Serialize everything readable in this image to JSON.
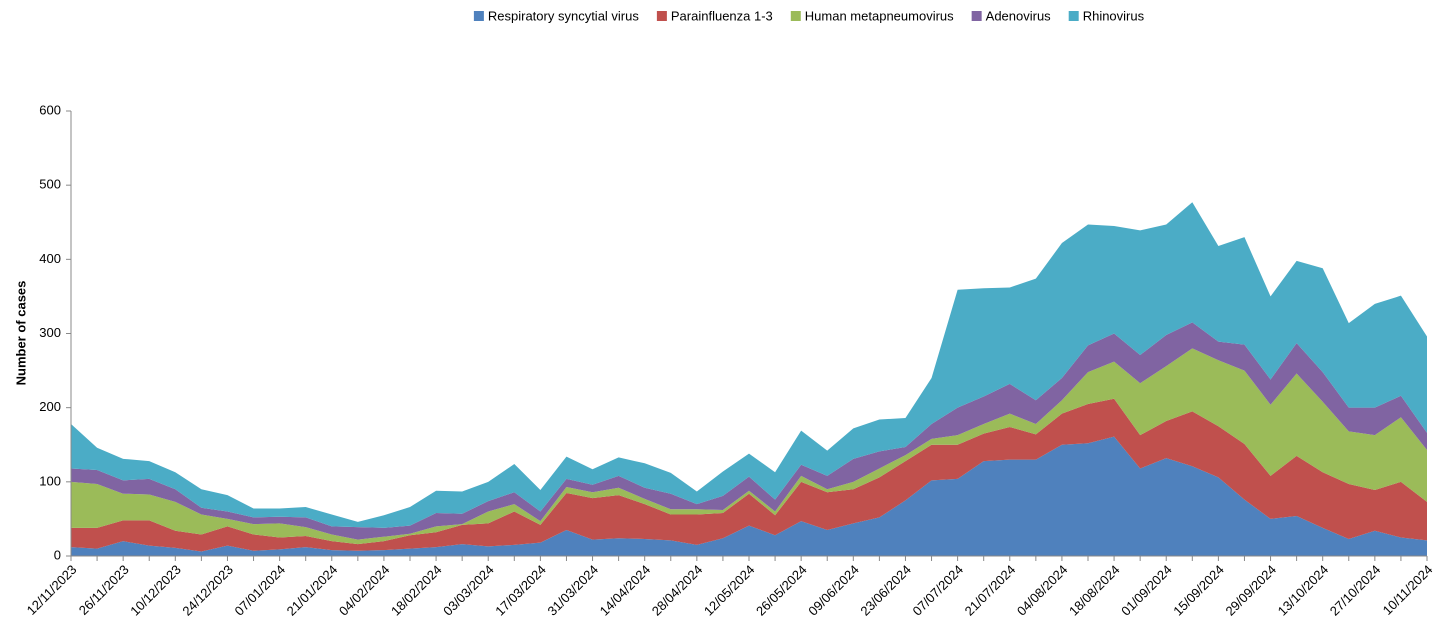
{
  "chart_data": {
    "type": "stacked-area",
    "y_label": "Number of cases",
    "ylim": [
      0,
      600
    ],
    "yticks": [
      0,
      100,
      200,
      300,
      400,
      500,
      600
    ],
    "grid": false,
    "legend": "top",
    "categories": [
      "12/11/2023",
      null,
      "26/11/2023",
      null,
      "10/12/2023",
      null,
      "24/12/2023",
      null,
      "07/01/2024",
      null,
      "21/01/2024",
      null,
      "04/02/2024",
      null,
      "18/02/2024",
      null,
      "03/03/2024",
      null,
      "17/03/2024",
      null,
      "31/03/2024",
      null,
      "14/04/2024",
      null,
      "28/04/2024",
      null,
      "12/05/2024",
      null,
      "26/05/2024",
      null,
      "09/06/2024",
      null,
      "23/06/2024",
      null,
      "07/07/2024",
      null,
      "21/07/2024",
      null,
      "04/08/2024",
      null,
      "18/08/2024",
      null,
      "01/09/2024",
      null,
      "15/09/2024",
      null,
      "29/09/2024",
      null,
      "13/10/2024",
      null,
      "27/10/2024",
      null,
      "10/11/2024"
    ],
    "series": [
      {
        "name": "Respiratory syncytial virus",
        "color": "#4f81bd",
        "values": [
          12,
          10,
          20,
          14,
          11,
          6,
          14,
          7,
          9,
          12,
          8,
          7,
          8,
          10,
          12,
          16,
          13,
          15,
          18,
          35,
          22,
          24,
          23,
          21,
          15,
          24,
          41,
          28,
          47,
          35,
          44,
          52,
          75,
          102,
          104,
          128,
          130,
          130,
          150,
          152,
          161,
          118,
          132,
          121,
          106,
          76,
          50,
          54,
          38,
          23,
          34,
          25,
          21
        ]
      },
      {
        "name": "Parainfluenza 1-3",
        "color": "#c0504d",
        "values": [
          26,
          28,
          28,
          34,
          23,
          23,
          26,
          22,
          16,
          15,
          12,
          9,
          12,
          18,
          20,
          26,
          31,
          45,
          24,
          50,
          56,
          58,
          47,
          35,
          41,
          34,
          43,
          27,
          53,
          51,
          46,
          54,
          53,
          48,
          46,
          37,
          44,
          34,
          42,
          53,
          51,
          45,
          50,
          74,
          69,
          75,
          58,
          81,
          75,
          74,
          55,
          75,
          52
        ]
      },
      {
        "name": "Human metapneumovirus",
        "color": "#9bbb59",
        "values": [
          62,
          59,
          36,
          35,
          39,
          27,
          10,
          14,
          19,
          12,
          9,
          6,
          6,
          2,
          8,
          1,
          16,
          10,
          5,
          8,
          8,
          10,
          7,
          7,
          7,
          4,
          4,
          5,
          8,
          4,
          10,
          12,
          8,
          8,
          13,
          13,
          18,
          14,
          18,
          43,
          50,
          70,
          74,
          85,
          89,
          99,
          96,
          111,
          95,
          71,
          74,
          87,
          70
        ]
      },
      {
        "name": "Adenovirus",
        "color": "#8064a2",
        "values": [
          18,
          19,
          18,
          21,
          17,
          9,
          10,
          9,
          9,
          13,
          11,
          17,
          12,
          11,
          18,
          14,
          14,
          16,
          13,
          11,
          10,
          16,
          15,
          21,
          7,
          19,
          19,
          16,
          15,
          18,
          31,
          23,
          11,
          20,
          37,
          37,
          40,
          32,
          30,
          36,
          38,
          38,
          42,
          35,
          25,
          35,
          34,
          41,
          40,
          32,
          37,
          29,
          23
        ]
      },
      {
        "name": "Rhinovirus",
        "color": "#4bacc6",
        "values": [
          60,
          30,
          29,
          24,
          23,
          25,
          22,
          12,
          11,
          14,
          16,
          7,
          17,
          25,
          30,
          30,
          26,
          38,
          29,
          30,
          21,
          25,
          33,
          28,
          17,
          33,
          31,
          37,
          46,
          34,
          41,
          43,
          39,
          62,
          159,
          146,
          130,
          164,
          182,
          163,
          145,
          168,
          149,
          162,
          129,
          145,
          112,
          111,
          140,
          114,
          140,
          135,
          130
        ]
      }
    ]
  }
}
